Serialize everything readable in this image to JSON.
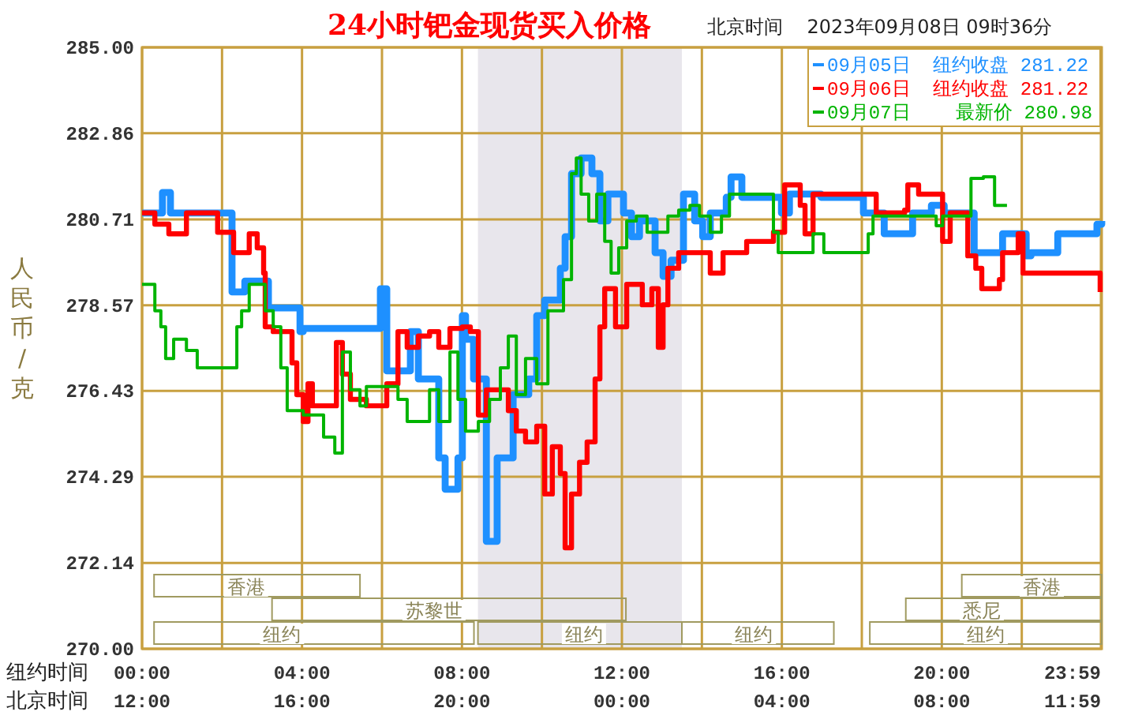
{
  "chart_data": {
    "type": "step",
    "title": "24小时钯金现货买入价格",
    "subtitle": "北京时间    2023年09月08日 09时36分",
    "xlabel": "纽约时间",
    "x2label": "北京时间",
    "ylabel": "人民币/克",
    "xlim": [
      0,
      24
    ],
    "xticks": [
      {
        "value": 0,
        "label": "00:00"
      },
      {
        "value": 2,
        "label": null
      },
      {
        "value": 4,
        "label": "04:00"
      },
      {
        "value": 6,
        "label": null
      },
      {
        "value": 8,
        "label": "08:00"
      },
      {
        "value": 10,
        "label": null
      },
      {
        "value": 12,
        "label": "12:00"
      },
      {
        "value": 14,
        "label": null
      },
      {
        "value": 16,
        "label": "16:00"
      },
      {
        "value": 18,
        "label": null
      },
      {
        "value": 20,
        "label": "20:00"
      },
      {
        "value": 22,
        "label": null
      },
      {
        "value": 23.98,
        "label": "23:59"
      }
    ],
    "x2lim": [
      "2023-09-07T12:00",
      "2023-09-08T12:00"
    ],
    "x2ticks": [
      {
        "value": "2023-09-07T12:00",
        "label": "12:00"
      },
      {
        "value": "2023-09-07T16:00",
        "label": "16:00"
      },
      {
        "value": "2023-09-07T20:00",
        "label": "20:00"
      },
      {
        "value": "2023-09-08T00:00",
        "label": "00:00"
      },
      {
        "value": "2023-09-08T04:00",
        "label": "04:00"
      },
      {
        "value": "2023-09-08T08:00",
        "label": "08:00"
      },
      {
        "value": "2023-09-08T11:59",
        "label": "11:59"
      }
    ],
    "ylim": [
      270,
      285
    ],
    "yticks": [
      {
        "value": 270,
        "label": "270.00"
      },
      {
        "value": 272.14,
        "label": "272.14"
      },
      {
        "value": 274.29,
        "label": "274.29"
      },
      {
        "value": 276.43,
        "label": "276.43"
      },
      {
        "value": 278.57,
        "label": "278.57"
      },
      {
        "value": 280.71,
        "label": "280.71"
      },
      {
        "value": 282.86,
        "label": "282.86"
      },
      {
        "value": 285,
        "label": "285.00"
      }
    ],
    "grid": true,
    "legend": "top right",
    "line_style": "solid",
    "marker": "none",
    "bands": [
      {
        "axis": "x",
        "from": 8.4,
        "to": 13.5,
        "color": "#e8e6ec"
      }
    ],
    "annotations": [
      "香港",
      "香港",
      "苏黎世",
      "悉尼",
      "纽约",
      "纽约",
      "纽约",
      "纽约"
    ],
    "series": [
      {
        "name": "09月05日  纽约收盘 281.22",
        "color": "#1e90ff",
        "x": [
          0,
          0.51,
          0.71,
          2.25,
          2.57,
          3.16,
          3.95,
          4.03,
          5.96,
          6.12,
          6.71,
          6.91,
          7.42,
          7.58,
          7.9,
          8.01,
          8.09,
          8.29,
          8.61,
          8.88,
          9.28,
          9.67,
          9.87,
          10.07,
          10.46,
          10.58,
          10.74,
          10.98,
          11.25,
          11.45,
          11.65,
          12.04,
          12.24,
          12.44,
          12.83,
          13.03,
          13.23,
          13.54,
          13.82,
          14.02,
          14.21,
          14.61,
          14.73,
          15.0,
          15.99,
          16.19,
          16.98,
          18.04,
          18.56,
          19.27,
          19.74,
          20.06,
          20.81,
          21.52,
          22.11,
          22.23,
          22.9,
          23.88,
          24
        ],
        "values": [
          280.87,
          281.38,
          280.87,
          278.9,
          279.17,
          278.5,
          277.91,
          277.99,
          278.98,
          276.93,
          277.91,
          276.73,
          274.76,
          273.98,
          274.76,
          278.31,
          277.72,
          276.73,
          272.68,
          274.76,
          276.34,
          276.73,
          278.31,
          278.7,
          279.49,
          280.28,
          281.85,
          282.24,
          281.85,
          280.67,
          281.34,
          280.87,
          280.28,
          280.67,
          279.88,
          279.29,
          279.69,
          281.34,
          280.67,
          280.28,
          280.87,
          281.26,
          281.77,
          281.26,
          280.87,
          281.34,
          281.26,
          280.87,
          280.35,
          280.87,
          281.06,
          280.87,
          279.88,
          280.35,
          279.8,
          279.88,
          280.35,
          280.59,
          280.67
        ]
      },
      {
        "name": "09月06日  纽约收盘 281.22",
        "color": "#ff0000",
        "x": [
          0,
          0.32,
          0.67,
          1.11,
          1.89,
          2.29,
          2.68,
          2.88,
          3.04,
          3.08,
          3.28,
          3.75,
          3.87,
          4.03,
          4.15,
          4.26,
          4.86,
          5.01,
          5.21,
          5.61,
          6.12,
          6.4,
          6.63,
          6.91,
          7.19,
          7.42,
          7.7,
          8.01,
          8.21,
          8.41,
          8.61,
          8.96,
          9.16,
          9.36,
          9.59,
          9.87,
          10.07,
          10.26,
          10.46,
          10.58,
          10.74,
          10.94,
          11.13,
          11.33,
          11.45,
          11.57,
          11.84,
          12.12,
          12.51,
          12.75,
          12.91,
          13.03,
          13.15,
          13.42,
          14.21,
          14.53,
          15.12,
          15.79,
          16.07,
          16.46,
          16.58,
          16.78,
          18.36,
          19.07,
          19.15,
          19.42,
          20.02,
          20.21,
          20.65,
          20.85,
          21.0,
          21.44,
          21.52,
          21.91,
          22.03,
          23.96
        ],
        "values": [
          280.87,
          280.59,
          280.35,
          280.87,
          280.39,
          279.88,
          280.35,
          280.0,
          279.37,
          278.03,
          277.91,
          277.13,
          276.34,
          275.67,
          276.61,
          276.06,
          277.64,
          276.85,
          276.22,
          276.06,
          276.61,
          277.91,
          277.52,
          277.8,
          277.91,
          277.52,
          277.99,
          278.03,
          277.91,
          275.83,
          276.46,
          276.46,
          275.94,
          275.43,
          275.16,
          275.55,
          273.86,
          275.04,
          274.37,
          272.52,
          273.86,
          274.65,
          275.16,
          276.73,
          278.03,
          278.98,
          278.03,
          279.09,
          278.58,
          278.98,
          277.52,
          278.58,
          279.49,
          279.88,
          279.37,
          279.88,
          280.16,
          280.39,
          281.57,
          281.06,
          280.35,
          281.34,
          280.87,
          280.94,
          281.57,
          281.34,
          280.16,
          280.87,
          279.8,
          279.49,
          278.98,
          279.21,
          279.88,
          280.35,
          279.37,
          278.9
        ]
      },
      {
        "name": "09月07日    最新价 280.98",
        "color": "#00b400",
        "x": [
          0,
          0.32,
          0.47,
          0.59,
          0.79,
          1.11,
          1.38,
          2.37,
          2.49,
          2.68,
          3.08,
          3.28,
          3.47,
          3.63,
          4.03,
          4.54,
          4.82,
          5.01,
          5.21,
          5.45,
          5.61,
          6.4,
          6.63,
          7.19,
          7.42,
          7.7,
          7.9,
          8.09,
          8.41,
          8.69,
          8.96,
          9.16,
          9.36,
          9.59,
          9.87,
          10.15,
          10.54,
          10.74,
          10.86,
          10.98,
          11.17,
          11.37,
          11.57,
          11.73,
          11.92,
          12.12,
          12.36,
          12.63,
          13.15,
          13.42,
          13.7,
          13.94,
          14.21,
          14.49,
          14.69,
          15.28,
          15.79,
          15.91,
          16.78,
          17.05,
          18.16,
          18.28,
          19.74,
          19.86,
          20.02,
          20.73,
          21.04,
          21.32,
          21.63
        ],
        "values": [
          279.09,
          278.43,
          278.03,
          277.24,
          277.72,
          277.44,
          277.01,
          278.03,
          278.43,
          279.09,
          278.43,
          278.03,
          277.01,
          275.94,
          275.83,
          275.28,
          274.88,
          277.4,
          276.46,
          276.06,
          276.54,
          276.22,
          275.67,
          276.46,
          275.67,
          277.4,
          276.22,
          275.43,
          275.67,
          276.22,
          277.01,
          277.8,
          276.34,
          277.24,
          276.61,
          278.43,
          279.21,
          281.85,
          282.24,
          281.34,
          280.67,
          281.34,
          280.16,
          279.37,
          280.0,
          280.67,
          280.79,
          280.39,
          280.79,
          280.94,
          281.06,
          280.79,
          280.39,
          280.79,
          281.34,
          281.34,
          280.39,
          279.88,
          280.35,
          279.88,
          280.35,
          280.79,
          280.79,
          280.55,
          280.79,
          281.73,
          281.77,
          281.06,
          281.06
        ]
      }
    ]
  }
}
